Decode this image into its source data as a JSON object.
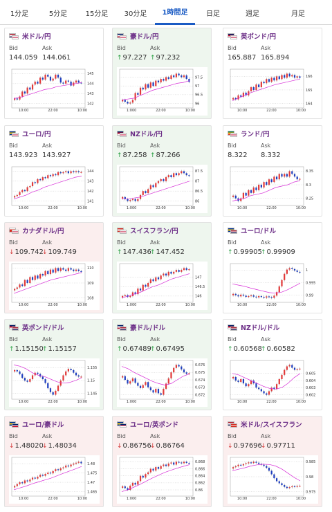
{
  "tabs": [
    {
      "label": "1分足",
      "active": false
    },
    {
      "label": "5分足",
      "active": false
    },
    {
      "label": "15分足",
      "active": false
    },
    {
      "label": "30分足",
      "active": false
    },
    {
      "label": "1時間足",
      "active": true
    },
    {
      "label": "日足",
      "active": false
    },
    {
      "label": "週足",
      "active": false
    },
    {
      "label": "月足",
      "active": false
    }
  ],
  "labels": {
    "bid": "Bid",
    "ask": "Ask"
  },
  "pairs": [
    {
      "name": "米ドル/円",
      "bid": "144.059",
      "ask": "144.061",
      "trend": "none",
      "bg": "white",
      "flags": [
        "us",
        "jp"
      ],
      "chart_data": {
        "type": "candlestick",
        "x_ticks": [
          "10:00",
          "22:00",
          "10:00"
        ],
        "y_ticks": [
          145,
          144,
          143,
          142
        ],
        "closes": [
          142.5,
          142.4,
          142.7,
          143.2,
          143.0,
          143.6,
          143.4,
          143.9,
          144.2,
          144.0,
          144.6,
          144.4,
          144.9,
          144.7,
          144.3,
          144.5,
          144.9,
          144.6,
          144.1,
          144.0,
          144.3,
          144.2,
          143.8,
          144.1,
          144.3,
          144.1,
          144.05
        ],
        "ma": [
          142.5,
          142.6,
          142.8,
          143.0,
          143.2,
          143.4,
          143.5,
          143.7,
          143.8,
          143.9,
          144.0,
          144.1
        ]
      }
    },
    {
      "name": "豪ドル/円",
      "bid": "97.227",
      "ask": "97.232",
      "trend": "up",
      "bg": "green",
      "flags": [
        "au",
        "jp"
      ],
      "chart_data": {
        "type": "candlestick",
        "x_ticks": [
          "1:000",
          "22:00",
          "10:00"
        ],
        "y_ticks": [
          97.5,
          97,
          96.5,
          96
        ],
        "closes": [
          96.2,
          96.1,
          96.0,
          96.05,
          96.2,
          96.6,
          96.5,
          96.9,
          96.8,
          97.1,
          96.9,
          97.2,
          97.0,
          97.3,
          97.2,
          97.4,
          97.3,
          97.5,
          97.4,
          97.6,
          97.5,
          97.7,
          97.6,
          97.5,
          97.6,
          97.4,
          97.23
        ],
        "ma": [
          96.2,
          96.25,
          96.3,
          96.45,
          96.6,
          96.75,
          96.85,
          96.95,
          97.05,
          97.15,
          97.2,
          97.3
        ]
      }
    },
    {
      "name": "英ポンド/円",
      "bid": "165.887",
      "ask": "165.894",
      "trend": "none",
      "bg": "white",
      "flags": [
        "gb",
        "jp"
      ],
      "chart_data": {
        "type": "candlestick",
        "x_ticks": [
          "10:00",
          "22:00",
          "10:00"
        ],
        "y_ticks": [
          166,
          165,
          164
        ],
        "closes": [
          164.4,
          164.3,
          164.6,
          164.5,
          164.8,
          164.6,
          164.9,
          165.2,
          165.0,
          165.4,
          165.2,
          165.6,
          165.5,
          165.8,
          165.6,
          165.9,
          165.7,
          166.0,
          165.8,
          166.1,
          165.9,
          166.2,
          166.0,
          166.1,
          165.9,
          166.0,
          165.89
        ],
        "ma": [
          164.2,
          164.4,
          164.6,
          164.8,
          164.95,
          165.1,
          165.25,
          165.4,
          165.5,
          165.6,
          165.7,
          165.8
        ]
      }
    },
    {
      "name": "ユーロ/円",
      "bid": "143.923",
      "ask": "143.927",
      "trend": "none",
      "bg": "white",
      "flags": [
        "eu",
        "jp"
      ],
      "chart_data": {
        "type": "candlestick",
        "x_ticks": [
          "10:00",
          "22:00",
          "10:00"
        ],
        "y_ticks": [
          144,
          143,
          142,
          141
        ],
        "closes": [
          141.5,
          141.6,
          141.9,
          142.1,
          142.0,
          142.4,
          142.5,
          142.9,
          142.8,
          143.2,
          143.1,
          143.4,
          143.3,
          143.6,
          143.5,
          143.7,
          143.6,
          143.9,
          143.8,
          143.9,
          144.0,
          143.8,
          144.0,
          143.9,
          144.0,
          143.9,
          143.92
        ],
        "ma": [
          141.2,
          141.4,
          141.6,
          141.9,
          142.1,
          142.4,
          142.6,
          142.8,
          143.0,
          143.2,
          143.4,
          143.5
        ]
      }
    },
    {
      "name": "NZドル/円",
      "bid": "87.258",
      "ask": "87.266",
      "trend": "up",
      "bg": "green",
      "flags": [
        "nz",
        "jp"
      ],
      "chart_data": {
        "type": "candlestick",
        "x_ticks": [
          "1:000",
          "22:00",
          "10:00"
        ],
        "y_ticks": [
          87.5,
          87,
          86.5,
          86
        ],
        "closes": [
          86.2,
          86.1,
          86.0,
          86.05,
          86.1,
          86.0,
          86.1,
          86.3,
          86.5,
          86.4,
          86.6,
          86.8,
          86.7,
          86.9,
          87.0,
          87.1,
          87.0,
          87.2,
          87.3,
          87.2,
          87.4,
          87.3,
          87.4,
          87.5,
          87.4,
          87.3,
          87.26
        ],
        "ma": [
          86.1,
          86.1,
          86.15,
          86.2,
          86.3,
          86.4,
          86.5,
          86.6,
          86.7,
          86.8,
          86.9,
          87.0
        ]
      }
    },
    {
      "name": "ランド/円",
      "bid": "8.322",
      "ask": "8.332",
      "trend": "none",
      "bg": "white",
      "flags": [
        "za",
        "jp"
      ],
      "chart_data": {
        "type": "candlestick",
        "x_ticks": [
          "10:00",
          "22:00",
          "10:00"
        ],
        "y_ticks": [
          8.35,
          8.3,
          8.25
        ],
        "closes": [
          8.26,
          8.25,
          8.24,
          8.25,
          8.27,
          8.26,
          8.28,
          8.27,
          8.29,
          8.28,
          8.3,
          8.29,
          8.31,
          8.3,
          8.32,
          8.31,
          8.33,
          8.32,
          8.34,
          8.33,
          8.34,
          8.33,
          8.35,
          8.34,
          8.33,
          8.32,
          8.322
        ],
        "ma": [
          8.24,
          8.245,
          8.25,
          8.26,
          8.265,
          8.27,
          8.28,
          8.29,
          8.295,
          8.3,
          8.31,
          8.315
        ]
      }
    },
    {
      "name": "カナダドル/円",
      "bid": "109.742",
      "ask": "109.749",
      "trend": "down",
      "bg": "red",
      "flags": [
        "ca",
        "jp"
      ],
      "chart_data": {
        "type": "candlestick",
        "x_ticks": [
          "10:00",
          "22:00",
          "10:00"
        ],
        "y_ticks": [
          110,
          109,
          108
        ],
        "closes": [
          108.6,
          108.7,
          108.9,
          108.8,
          109.2,
          109.0,
          109.4,
          109.2,
          109.5,
          109.3,
          109.6,
          109.5,
          109.8,
          109.6,
          109.9,
          109.7,
          110.0,
          109.8,
          110.0,
          109.9,
          109.8,
          110.0,
          109.9,
          109.8,
          109.9,
          109.8,
          109.74
        ],
        "ma": [
          108.3,
          108.45,
          108.6,
          108.75,
          108.9,
          109.05,
          109.2,
          109.3,
          109.4,
          109.5,
          109.6,
          109.7
        ]
      }
    },
    {
      "name": "スイスフラン/円",
      "bid": "147.436",
      "ask": "147.452",
      "trend": "up",
      "bg": "green",
      "flags": [
        "ch",
        "jp"
      ],
      "chart_data": {
        "type": "candlestick",
        "x_ticks": [
          "1:000",
          "22:00",
          "10:00"
        ],
        "y_ticks": [
          147,
          146.5,
          146
        ],
        "closes": [
          146.0,
          146.05,
          145.95,
          146.0,
          146.2,
          146.1,
          146.4,
          146.3,
          146.6,
          146.5,
          146.7,
          146.9,
          146.8,
          147.0,
          146.9,
          147.1,
          147.2,
          147.1,
          147.3,
          147.2,
          147.3,
          147.4,
          147.3,
          147.4,
          147.5,
          147.4,
          147.44
        ],
        "ma": [
          145.9,
          146.0,
          146.1,
          146.2,
          146.35,
          146.5,
          146.6,
          146.75,
          146.9,
          147.0,
          147.1,
          147.2
        ]
      }
    },
    {
      "name": "ユーロ/ドル",
      "bid": "0.99905",
      "ask": "0.99909",
      "trend": "up",
      "bg": "white",
      "flags": [
        "eu",
        "us"
      ],
      "chart_data": {
        "type": "candlestick",
        "x_ticks": [
          "10:00",
          "22:00",
          "10:00"
        ],
        "y_ticks": [
          1,
          0.995,
          0.99
        ],
        "closes": [
          0.9905,
          0.99,
          0.9895,
          0.9902,
          0.9898,
          0.9893,
          0.9896,
          0.9899,
          0.9894,
          0.9891,
          0.9896,
          0.9893,
          0.989,
          0.9895,
          0.9892,
          0.9889,
          0.9898,
          0.9912,
          0.9935,
          0.996,
          0.9985,
          1.0002,
          1.0008,
          1.0004,
          0.9998,
          0.9993,
          0.99905
        ],
        "ma": [
          0.9945,
          0.994,
          0.9935,
          0.9928,
          0.9922,
          0.9916,
          0.991,
          0.9908,
          0.9912,
          0.9922,
          0.9935,
          0.9948
        ]
      }
    },
    {
      "name": "英ポンド/ドル",
      "bid": "1.15150",
      "ask": "1.15157",
      "trend": "up",
      "bg": "green",
      "flags": [
        "gb",
        "us"
      ],
      "chart_data": {
        "type": "candlestick",
        "x_ticks": [
          "10:00",
          "22:00",
          "10:00"
        ],
        "y_ticks": [
          1.155,
          1.15,
          1.145
        ],
        "closes": [
          1.154,
          1.1535,
          1.1525,
          1.151,
          1.15,
          1.1495,
          1.1505,
          1.152,
          1.153,
          1.1525,
          1.1515,
          1.1505,
          1.149,
          1.147,
          1.1455,
          1.1445,
          1.146,
          1.148,
          1.15,
          1.152,
          1.1535,
          1.1545,
          1.154,
          1.153,
          1.152,
          1.1515,
          1.1515
        ],
        "ma": [
          1.156,
          1.1555,
          1.1545,
          1.153,
          1.152,
          1.1515,
          1.1505,
          1.1495,
          1.149,
          1.1492,
          1.15,
          1.151
        ]
      }
    },
    {
      "name": "豪ドル/ドル",
      "bid": "0.67489",
      "ask": "0.67495",
      "trend": "up",
      "bg": "green",
      "flags": [
        "au",
        "us"
      ],
      "chart_data": {
        "type": "candlestick",
        "x_ticks": [
          "1:000",
          "22:00",
          "10:00"
        ],
        "y_ticks": [
          0.676,
          0.675,
          0.674,
          0.673,
          0.672
        ],
        "closes": [
          0.6745,
          0.674,
          0.6735,
          0.6738,
          0.6742,
          0.6736,
          0.6732,
          0.6729,
          0.6733,
          0.6737,
          0.673,
          0.6726,
          0.6723,
          0.6728,
          0.6722,
          0.672,
          0.6728,
          0.6735,
          0.6742,
          0.675,
          0.6756,
          0.676,
          0.6758,
          0.6754,
          0.675,
          0.6748,
          0.67489
        ],
        "ma": [
          0.6758,
          0.6755,
          0.675,
          0.6746,
          0.6742,
          0.6738,
          0.6735,
          0.6733,
          0.6735,
          0.674,
          0.6745,
          0.6748
        ]
      }
    },
    {
      "name": "NZドル/ドル",
      "bid": "0.60568",
      "ask": "0.60582",
      "trend": "up",
      "bg": "white",
      "flags": [
        "nz",
        "us"
      ],
      "chart_data": {
        "type": "candlestick",
        "x_ticks": [
          "10:00",
          "22:00",
          "10:00"
        ],
        "y_ticks": [
          0.605,
          0.604,
          0.603,
          0.602
        ],
        "closes": [
          0.6045,
          0.604,
          0.6038,
          0.6042,
          0.6036,
          0.6032,
          0.6035,
          0.604,
          0.6036,
          0.603,
          0.6028,
          0.6025,
          0.6022,
          0.602,
          0.6025,
          0.603,
          0.6028,
          0.6035,
          0.6042,
          0.6048,
          0.6055,
          0.606,
          0.6062,
          0.6058,
          0.6055,
          0.6056,
          0.60568
        ],
        "ma": [
          0.605,
          0.6048,
          0.6044,
          0.604,
          0.6036,
          0.6032,
          0.6029,
          0.6028,
          0.603,
          0.6036,
          0.6044,
          0.605
        ]
      }
    },
    {
      "name": "ユーロ/豪ドル",
      "bid": "1.48020",
      "ask": "1.48034",
      "trend": "down",
      "bg": "red",
      "flags": [
        "eu",
        "au"
      ],
      "chart_data": {
        "type": "candlestick",
        "x_ticks": [
          "10:00",
          "22:00",
          "10:00"
        ],
        "y_ticks": [
          1.48,
          1.475,
          1.47,
          1.465
        ],
        "closes": [
          1.468,
          1.469,
          1.47,
          1.4695,
          1.471,
          1.4705,
          1.4715,
          1.4725,
          1.472,
          1.473,
          1.474,
          1.4735,
          1.4745,
          1.4752,
          1.4748,
          1.476,
          1.477,
          1.4765,
          1.4775,
          1.478,
          1.479,
          1.4785,
          1.4795,
          1.48,
          1.4805,
          1.481,
          1.4802
        ],
        "ma": [
          1.466,
          1.467,
          1.468,
          1.4692,
          1.4702,
          1.4712,
          1.4722,
          1.4735,
          1.4748,
          1.476,
          1.4772,
          1.4785
        ]
      }
    },
    {
      "name": "ユーロ/英ポンド",
      "bid": "0.86756",
      "ask": "0.86764",
      "trend": "down",
      "bg": "red",
      "flags": [
        "eu",
        "gb"
      ],
      "chart_data": {
        "type": "candlestick",
        "x_ticks": [
          "1:000",
          "22:00",
          "10:00"
        ],
        "y_ticks": [
          0.868,
          0.866,
          0.864,
          0.862,
          0.86
        ],
        "closes": [
          0.861,
          0.8605,
          0.86,
          0.8612,
          0.862,
          0.8615,
          0.8625,
          0.864,
          0.8635,
          0.8645,
          0.865,
          0.866,
          0.8655,
          0.8665,
          0.866,
          0.8668,
          0.8672,
          0.8668,
          0.8675,
          0.8678,
          0.8672,
          0.868,
          0.8678,
          0.8676,
          0.868,
          0.8677,
          0.86756
        ],
        "ma": [
          0.8595,
          0.86,
          0.8608,
          0.8616,
          0.8625,
          0.8634,
          0.8642,
          0.865,
          0.8656,
          0.8662,
          0.8667,
          0.8672
        ]
      }
    },
    {
      "name": "米ドル/スイスフラン",
      "bid": "0.97696",
      "ask": "0.97711",
      "trend": "down",
      "bg": "red",
      "flags": [
        "us",
        "ch"
      ],
      "chart_data": {
        "type": "candlestick",
        "x_ticks": [
          "10:00",
          "22:00",
          "10:00"
        ],
        "y_ticks": [
          0.985,
          0.98,
          0.975
        ],
        "closes": [
          0.9832,
          0.9835,
          0.984,
          0.9838,
          0.9842,
          0.9845,
          0.9848,
          0.9846,
          0.985,
          0.9847,
          0.9843,
          0.984,
          0.9836,
          0.983,
          0.982,
          0.9808,
          0.9795,
          0.9785,
          0.9778,
          0.9772,
          0.9766,
          0.9762,
          0.9765,
          0.9768,
          0.9766,
          0.9769,
          0.97696
        ],
        "ma": [
          0.982,
          0.9825,
          0.983,
          0.9836,
          0.984,
          0.9842,
          0.9841,
          0.9836,
          0.9826,
          0.9812,
          0.9798,
          0.9786
        ]
      }
    }
  ],
  "colors": {
    "accent": "#1a5bc4",
    "pair_title": "#6b2d86",
    "up_arrow": "#1f9a3a",
    "down_arrow": "#d23030",
    "candle_up": "#e23a3a",
    "candle_down": "#1f3fbf",
    "moving_average": "#d62ad6",
    "card_green": "#eef6ee",
    "card_red": "#fbeeee"
  },
  "icons": {
    "up": "arrow-up-icon",
    "down": "arrow-down-icon"
  }
}
